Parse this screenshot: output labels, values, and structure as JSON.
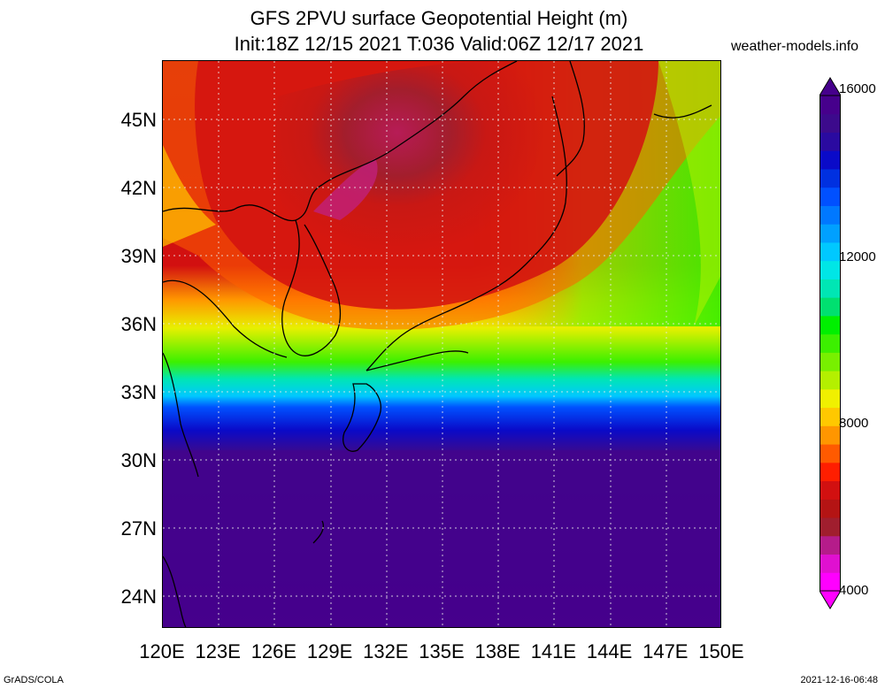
{
  "title": {
    "line1": "GFS 2PVU surface Geopotential Height (m)",
    "line2": "Init:18Z 12/15 2021 T:036 Valid:06Z 12/17 2021"
  },
  "site": "weather-models.info",
  "lat_labels": [
    "45N",
    "42N",
    "39N",
    "36N",
    "33N",
    "30N",
    "27N",
    "24N"
  ],
  "lon_labels": [
    "120E",
    "123E",
    "126E",
    "129E",
    "132E",
    "135E",
    "138E",
    "141E",
    "144E",
    "147E",
    "150E"
  ],
  "colorbar": {
    "labels": [
      "16000",
      "12000",
      "8000",
      "4000"
    ],
    "colors": [
      "#ff00ff",
      "#e010d0",
      "#b51c8a",
      "#a01e2e",
      "#b41414",
      "#d21010",
      "#ff1e00",
      "#ff5a00",
      "#ff9600",
      "#ffc800",
      "#f0f000",
      "#b4f000",
      "#78f000",
      "#3cf000",
      "#00f000",
      "#00e070",
      "#00e6b4",
      "#00e6e6",
      "#00c8ff",
      "#00a0ff",
      "#0078ff",
      "#0050ff",
      "#0030e0",
      "#0a0ac8",
      "#2a0aa0",
      "#3c0a8c",
      "#46008c"
    ]
  },
  "footer": {
    "left": "GrADS/COLA",
    "right": "2021-12-16-06:48"
  }
}
